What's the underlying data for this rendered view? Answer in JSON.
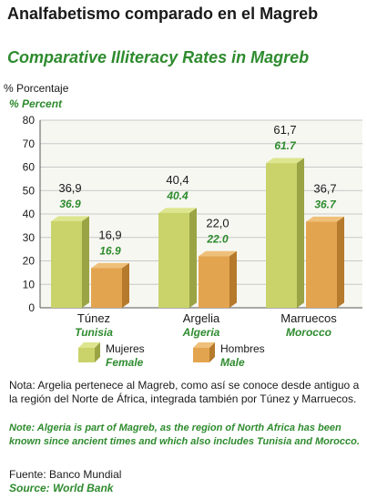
{
  "title_es": "Analfabetismo comparado en el Magreb",
  "title_en": "Comparative Illiteracy Rates in Magreb",
  "ylabel_es": "% Porcentaje",
  "ylabel_en": "% Percent",
  "legend": {
    "female_es": "Mujeres",
    "female_en": "Female",
    "male_es": "Hombres",
    "male_en": "Male"
  },
  "note_es": "Nota: Argelia pertenece al Magreb, como así se conoce desde antiguo a la región del Norte de África, integrada también por Túnez y Marruecos.",
  "note_en": "Note: Algeria is part of Magreb, as the region of North Africa has been known since ancient times and which also includes Tunisia and Morocco.",
  "source_es": "Fuente: Banco Mundial",
  "source_en": "Source: World Bank",
  "colors": {
    "female_front": "#c9d36a",
    "female_top": "#dde58e",
    "female_side": "#9aa444",
    "male_front": "#e3a44f",
    "male_top": "#efc07a",
    "male_side": "#b57a2c",
    "label_en": "#2e8b2e"
  },
  "chart_data": {
    "type": "bar",
    "categories": [
      "Túnez",
      "Argelia",
      "Marruecos"
    ],
    "categories_en": [
      "Tunisia",
      "Algeria",
      "Morocco"
    ],
    "series": [
      {
        "name": "Mujeres / Female",
        "values": [
          36.9,
          40.4,
          61.7
        ],
        "labels_es": [
          "36,9",
          "40,4",
          "61,7"
        ],
        "labels_en": [
          "36.9",
          "40.4",
          "61.7"
        ]
      },
      {
        "name": "Hombres / Male",
        "values": [
          16.9,
          22.0,
          36.7
        ],
        "labels_es": [
          "16,9",
          "22,0",
          "36,7"
        ],
        "labels_en": [
          "16.9",
          "22.0",
          "36.7"
        ]
      }
    ],
    "ylim": [
      0,
      80
    ],
    "yticks": [
      0,
      10,
      20,
      30,
      40,
      50,
      60,
      70,
      80
    ],
    "grid": true
  }
}
